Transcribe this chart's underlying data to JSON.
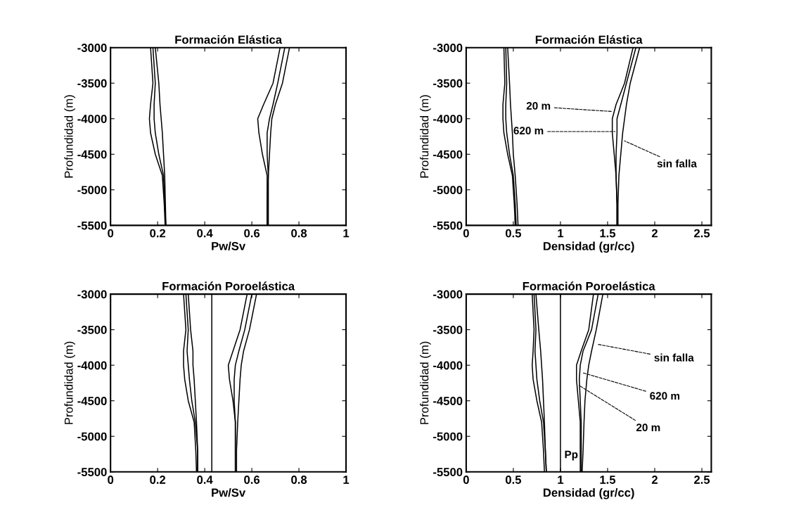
{
  "chart_data": [
    {
      "type": "line",
      "title": "Formación Elástica",
      "xlabel": "Pw/Sv",
      "ylabel": "Profundidad (m)",
      "xlim": [
        0,
        1
      ],
      "xticks": [
        0,
        0.2,
        0.4,
        0.6,
        0.8,
        1
      ],
      "ylim": [
        -5500,
        -3000
      ],
      "yticks": [
        -5500,
        -5000,
        -4500,
        -4000,
        -3500,
        -3000
      ],
      "grid": false,
      "marker": "none",
      "line_style": "solid",
      "series": [
        {
          "color": "#000000",
          "x": [
            0.19,
            0.205,
            0.21,
            0.215,
            0.22,
            0.225,
            0.23,
            0.233,
            0.235
          ],
          "values": [
            -3000,
            -3500,
            -3800,
            -4000,
            -4200,
            -4500,
            -4800,
            -5200,
            -5500
          ]
        },
        {
          "color": "#000000",
          "x": [
            0.18,
            0.19,
            0.185,
            0.185,
            0.19,
            0.205,
            0.225,
            0.23,
            0.235
          ],
          "values": [
            -3000,
            -3500,
            -3800,
            -4000,
            -4200,
            -4500,
            -4800,
            -5200,
            -5500
          ]
        },
        {
          "color": "#000000",
          "x": [
            0.17,
            0.18,
            0.17,
            0.165,
            0.17,
            0.19,
            0.22,
            0.228,
            0.232
          ],
          "values": [
            -3000,
            -3500,
            -3800,
            -4000,
            -4200,
            -4500,
            -4800,
            -5200,
            -5500
          ]
        },
        {
          "color": "#000000",
          "x": [
            0.76,
            0.73,
            0.7,
            0.685,
            0.68,
            0.675,
            0.67,
            0.665,
            0.665
          ],
          "values": [
            -3000,
            -3500,
            -3800,
            -4000,
            -4200,
            -4500,
            -4800,
            -5200,
            -5500
          ]
        },
        {
          "color": "#000000",
          "x": [
            0.74,
            0.71,
            0.69,
            0.675,
            0.665,
            0.665,
            0.67,
            0.67,
            0.67
          ],
          "values": [
            -3000,
            -3500,
            -3800,
            -4000,
            -4200,
            -4500,
            -4800,
            -5200,
            -5500
          ]
        },
        {
          "color": "#000000",
          "x": [
            0.72,
            0.69,
            0.65,
            0.625,
            0.63,
            0.645,
            0.665,
            0.665,
            0.665
          ],
          "values": [
            -3000,
            -3500,
            -3800,
            -4000,
            -4200,
            -4500,
            -4800,
            -5200,
            -5500
          ]
        }
      ]
    },
    {
      "type": "line",
      "title": "Formación Elástica",
      "xlabel": "Densidad (gr/cc)",
      "ylabel": "Profundidad (m)",
      "xlim": [
        0,
        2.6
      ],
      "xticks": [
        0,
        0.5,
        1,
        1.5,
        2,
        2.5
      ],
      "ylim": [
        -5500,
        -3000
      ],
      "yticks": [
        -5500,
        -5000,
        -4500,
        -4000,
        -3500,
        -3000
      ],
      "grid": false,
      "marker": "none",
      "line_style": "solid",
      "series": [
        {
          "color": "#000000",
          "x": [
            0.44,
            0.46,
            0.47,
            0.48,
            0.49,
            0.5,
            0.52,
            0.54,
            0.55
          ],
          "values": [
            -3000,
            -3500,
            -3800,
            -4000,
            -4200,
            -4500,
            -4800,
            -5200,
            -5500
          ]
        },
        {
          "color": "#000000",
          "x": [
            0.42,
            0.43,
            0.42,
            0.42,
            0.43,
            0.46,
            0.5,
            0.52,
            0.53
          ],
          "values": [
            -3000,
            -3500,
            -3800,
            -4000,
            -4200,
            -4500,
            -4800,
            -5200,
            -5500
          ]
        },
        {
          "color": "#000000",
          "x": [
            0.4,
            0.41,
            0.39,
            0.39,
            0.4,
            0.44,
            0.49,
            0.51,
            0.52
          ],
          "values": [
            -3000,
            -3500,
            -3800,
            -4000,
            -4200,
            -4500,
            -4800,
            -5200,
            -5500
          ]
        },
        {
          "color": "#000000",
          "x": [
            1.84,
            1.74,
            1.7,
            1.68,
            1.66,
            1.64,
            1.62,
            1.61,
            1.61
          ],
          "values": [
            -3000,
            -3500,
            -3800,
            -4000,
            -4200,
            -4500,
            -4800,
            -5200,
            -5500
          ]
        },
        {
          "color": "#000000",
          "x": [
            1.8,
            1.7,
            1.64,
            1.6,
            1.6,
            1.59,
            1.59,
            1.6,
            1.6
          ],
          "values": [
            -3000,
            -3500,
            -3800,
            -4000,
            -4200,
            -4500,
            -4800,
            -5200,
            -5500
          ]
        },
        {
          "color": "#000000",
          "x": [
            1.77,
            1.68,
            1.59,
            1.55,
            1.55,
            1.57,
            1.59,
            1.6,
            1.6
          ],
          "values": [
            -3000,
            -3500,
            -3800,
            -4000,
            -4200,
            -4500,
            -4800,
            -5200,
            -5500
          ]
        }
      ],
      "annotations": [
        {
          "text": "20 m",
          "x": 1.57,
          "y": -3900
        },
        {
          "text": "620 m",
          "x": 1.6,
          "y": -4180
        },
        {
          "text": "sin falla",
          "x": 1.66,
          "y": -4300
        }
      ]
    },
    {
      "type": "line",
      "title": "Formación Poroelástica",
      "xlabel": "Pw/Sv",
      "ylabel": "Profundidad (m)",
      "xlim": [
        0,
        1
      ],
      "xticks": [
        0,
        0.2,
        0.4,
        0.6,
        0.8,
        1
      ],
      "ylim": [
        -5500,
        -3000
      ],
      "yticks": [
        -5500,
        -5000,
        -4500,
        -4000,
        -3500,
        -3000
      ],
      "grid": false,
      "marker": "none",
      "line_style": "solid",
      "series": [
        {
          "color": "#000000",
          "x": [
            0.33,
            0.34,
            0.35,
            0.35,
            0.355,
            0.36,
            0.365,
            0.37,
            0.37
          ],
          "values": [
            -3000,
            -3500,
            -3800,
            -4000,
            -4200,
            -4500,
            -4800,
            -5200,
            -5500
          ]
        },
        {
          "color": "#000000",
          "x": [
            0.32,
            0.33,
            0.325,
            0.33,
            0.335,
            0.345,
            0.36,
            0.37,
            0.37
          ],
          "values": [
            -3000,
            -3500,
            -3800,
            -4000,
            -4200,
            -4500,
            -4800,
            -5200,
            -5500
          ]
        },
        {
          "color": "#000000",
          "x": [
            0.31,
            0.32,
            0.31,
            0.31,
            0.315,
            0.33,
            0.355,
            0.362,
            0.365
          ],
          "values": [
            -3000,
            -3500,
            -3800,
            -4000,
            -4200,
            -4500,
            -4800,
            -5200,
            -5500
          ]
        },
        {
          "color": "#000000",
          "x": [
            0.62,
            0.59,
            0.565,
            0.555,
            0.55,
            0.545,
            0.54,
            0.535,
            0.535
          ],
          "values": [
            -3000,
            -3500,
            -3800,
            -4000,
            -4200,
            -4500,
            -4800,
            -5200,
            -5500
          ]
        },
        {
          "color": "#000000",
          "x": [
            0.6,
            0.57,
            0.545,
            0.53,
            0.525,
            0.525,
            0.53,
            0.53,
            0.53
          ],
          "values": [
            -3000,
            -3500,
            -3800,
            -4000,
            -4200,
            -4500,
            -4800,
            -5200,
            -5500
          ]
        },
        {
          "color": "#000000",
          "x": [
            0.58,
            0.55,
            0.52,
            0.5,
            0.505,
            0.52,
            0.53,
            0.53,
            0.53
          ],
          "values": [
            -3000,
            -3500,
            -3800,
            -4000,
            -4200,
            -4500,
            -4800,
            -5200,
            -5500
          ]
        }
      ],
      "ref_lines": [
        {
          "axis": "x",
          "value": 0.43,
          "color": "#000000"
        }
      ]
    },
    {
      "type": "line",
      "title": "Formación Poroelástica",
      "xlabel": "Densidad (gr/cc)",
      "ylabel": "Profundidad (m)",
      "xlim": [
        0,
        2.6
      ],
      "xticks": [
        0,
        0.5,
        1,
        1.5,
        2,
        2.5
      ],
      "ylim": [
        -5500,
        -3000
      ],
      "yticks": [
        -5500,
        -5000,
        -4500,
        -4000,
        -3500,
        -3000
      ],
      "grid": false,
      "marker": "none",
      "line_style": "solid",
      "series": [
        {
          "color": "#000000",
          "x": [
            0.74,
            0.77,
            0.79,
            0.8,
            0.81,
            0.82,
            0.83,
            0.84,
            0.85
          ],
          "values": [
            -3000,
            -3500,
            -3800,
            -4000,
            -4200,
            -4500,
            -4800,
            -5200,
            -5500
          ]
        },
        {
          "color": "#000000",
          "x": [
            0.72,
            0.74,
            0.73,
            0.74,
            0.75,
            0.78,
            0.82,
            0.84,
            0.85
          ],
          "values": [
            -3000,
            -3500,
            -3800,
            -4000,
            -4200,
            -4500,
            -4800,
            -5200,
            -5500
          ]
        },
        {
          "color": "#000000",
          "x": [
            0.7,
            0.72,
            0.71,
            0.7,
            0.71,
            0.75,
            0.8,
            0.82,
            0.83
          ],
          "values": [
            -3000,
            -3500,
            -3800,
            -4000,
            -4200,
            -4500,
            -4800,
            -5200,
            -5500
          ]
        },
        {
          "color": "#000000",
          "x": [
            1.45,
            1.38,
            1.33,
            1.3,
            1.28,
            1.26,
            1.25,
            1.24,
            1.23
          ],
          "values": [
            -3000,
            -3500,
            -3800,
            -4000,
            -4200,
            -4500,
            -4800,
            -5200,
            -5500
          ]
        },
        {
          "color": "#000000",
          "x": [
            1.4,
            1.33,
            1.24,
            1.21,
            1.2,
            1.21,
            1.22,
            1.22,
            1.22
          ],
          "values": [
            -3000,
            -3500,
            -3800,
            -4000,
            -4200,
            -4500,
            -4800,
            -5200,
            -5500
          ]
        },
        {
          "color": "#000000",
          "x": [
            1.35,
            1.3,
            1.22,
            1.17,
            1.17,
            1.19,
            1.21,
            1.21,
            1.21
          ],
          "values": [
            -3000,
            -3500,
            -3800,
            -4000,
            -4200,
            -4500,
            -4800,
            -5200,
            -5500
          ]
        }
      ],
      "ref_lines": [
        {
          "axis": "x",
          "value": 1,
          "label": "Pp",
          "color": "#000000"
        }
      ],
      "annotations": [
        {
          "text": "sin falla",
          "x": 1.37,
          "y": -3700
        },
        {
          "text": "620 m",
          "x": 1.22,
          "y": -4100
        },
        {
          "text": "20 m",
          "x": 1.18,
          "y": -4270
        }
      ]
    }
  ]
}
